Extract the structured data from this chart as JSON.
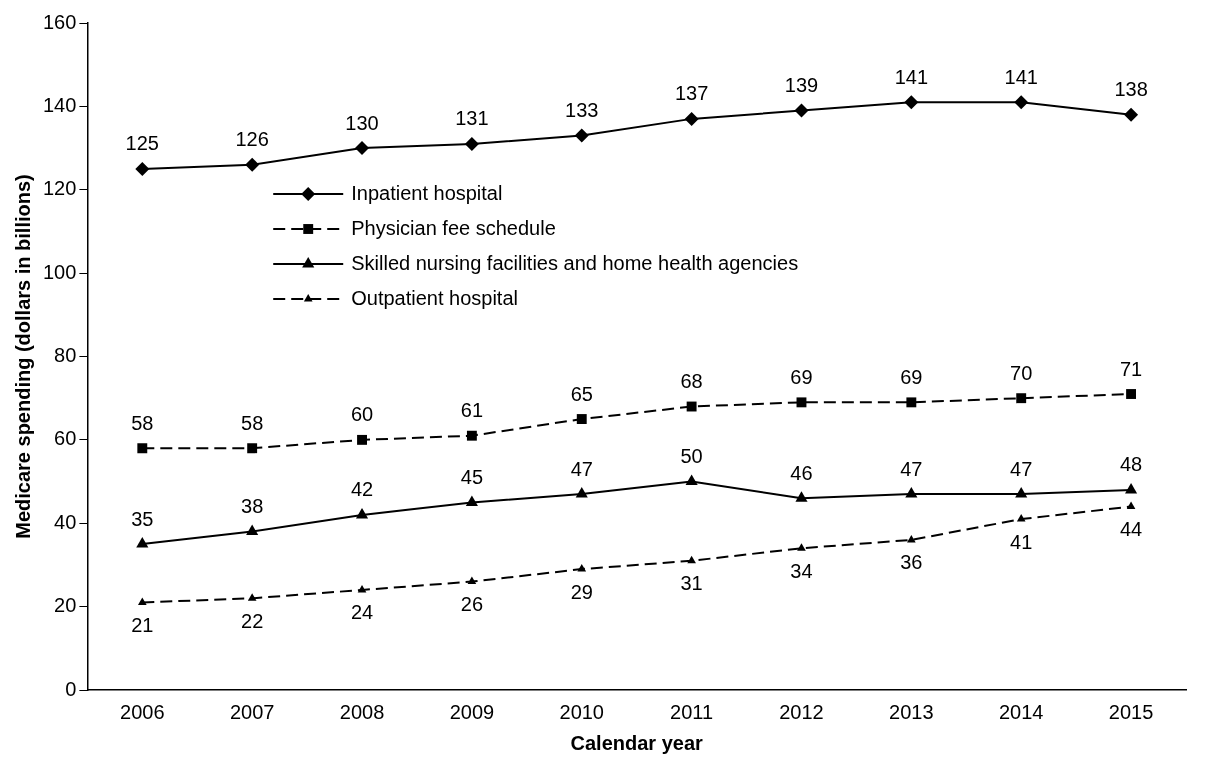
{
  "chart_data": {
    "type": "line",
    "xlabel": "Calendar year",
    "ylabel": "Medicare spending (dollars in billions)",
    "categories": [
      "2006",
      "2007",
      "2008",
      "2009",
      "2010",
      "2011",
      "2012",
      "2013",
      "2014",
      "2015"
    ],
    "series": [
      {
        "name": "Inpatient hospital",
        "color": "#000000",
        "marker": "diamond",
        "line_style": "solid",
        "values": [
          125,
          126,
          130,
          131,
          133,
          137,
          139,
          141,
          141,
          138
        ]
      },
      {
        "name": "Physician fee schedule",
        "color": "#000000",
        "marker": "square",
        "line_style": "dashed",
        "values": [
          58,
          58,
          60,
          61,
          65,
          68,
          69,
          69,
          70,
          71
        ]
      },
      {
        "name": "Skilled nursing facilities and home health agencies",
        "color": "#000000",
        "marker": "triangle",
        "line_style": "solid",
        "values": [
          35,
          38,
          42,
          45,
          47,
          50,
          46,
          47,
          47,
          48
        ]
      },
      {
        "name": "Outpatient hospital",
        "color": "#000000",
        "marker": "triangle",
        "line_style": "dashed",
        "values": [
          21,
          22,
          24,
          26,
          29,
          31,
          34,
          36,
          41,
          44
        ]
      }
    ],
    "ylim": [
      0,
      160
    ],
    "yticks": [
      0,
      20,
      40,
      60,
      80,
      100,
      120,
      140,
      160
    ],
    "grid": false,
    "legend": "center",
    "data_labels": true
  }
}
